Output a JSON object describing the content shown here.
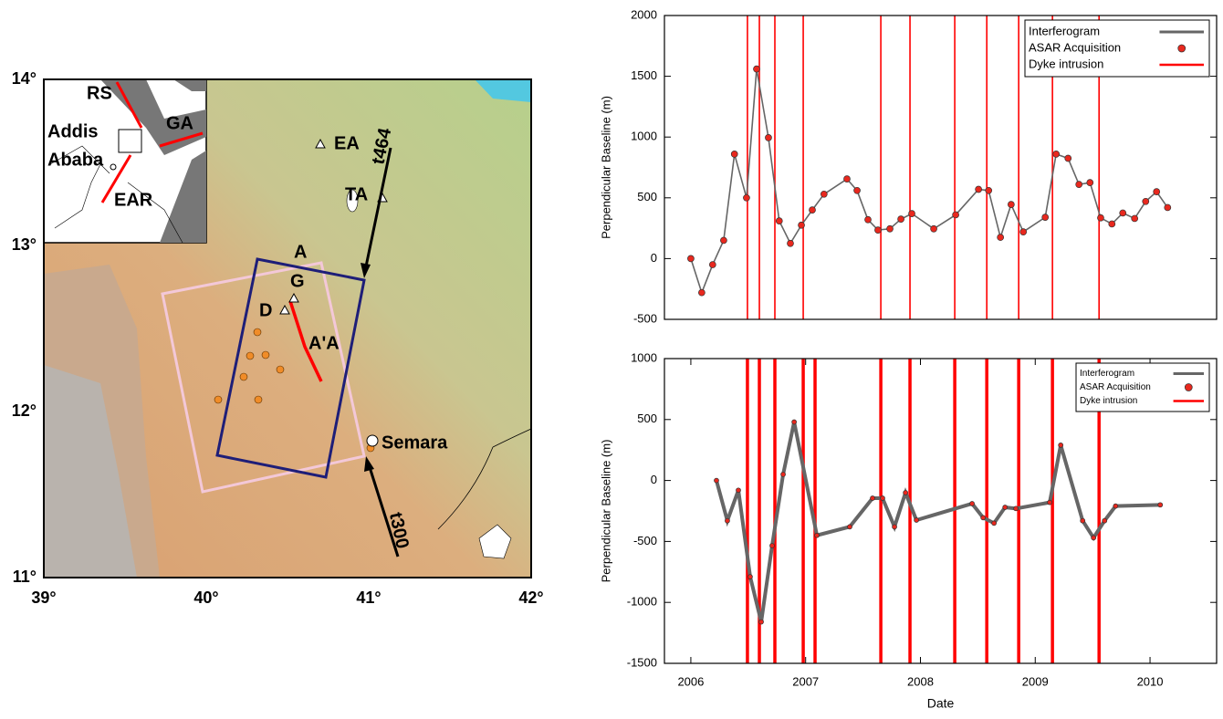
{
  "map": {
    "xticks": [
      "39°",
      "40°",
      "41°",
      "42°"
    ],
    "yticks": [
      "14°",
      "13°",
      "12°",
      "11°"
    ],
    "labels": [
      "RS",
      "GA",
      "Addis",
      "Ababa",
      "EAR",
      "EA",
      "TA",
      "A",
      "G",
      "D",
      "A'A",
      "Semara",
      "t464",
      "t300"
    ]
  },
  "chart_data": [
    {
      "type": "line",
      "y_label": "Perpendicular Baseline (m)",
      "xlim": [
        2005.77,
        2010.58
      ],
      "ylim": [
        -500,
        2000
      ],
      "yticks": [
        -500,
        0,
        500,
        1000,
        1500,
        2000
      ],
      "legend": "upper right",
      "series": [
        {
          "name": "Interferogram",
          "color": "#666666",
          "x": [
            2006.0,
            2006.095,
            2006.19,
            2006.286,
            2006.38,
            2006.485,
            2006.573,
            2006.676,
            2006.77,
            2006.867,
            2006.963,
            2007.058,
            2007.16,
            2007.36,
            2007.448,
            2007.543,
            2007.63,
            2007.734,
            2007.83,
            2007.925,
            2008.116,
            2008.307,
            2008.506,
            2008.594,
            2008.697,
            2008.79,
            2008.896,
            2009.087,
            2009.182,
            2009.286,
            2009.381,
            2009.477,
            2009.57,
            2009.668,
            2009.763,
            2009.866,
            2009.962,
            2010.057,
            2010.153
          ],
          "values": [
            0,
            -280,
            -50,
            150,
            860,
            500,
            1560,
            995,
            310,
            125,
            275,
            400,
            530,
            655,
            560,
            320,
            235,
            245,
            325,
            370,
            245,
            360,
            570,
            560,
            175,
            445,
            220,
            340,
            860,
            825,
            610,
            625,
            335,
            285,
            375,
            330,
            470,
            550,
            420
          ],
          "markers": {
            "name": "ASAR Acquisition",
            "color": "#e8281e"
          }
        }
      ],
      "vlines": {
        "name": "Dyke intrusion",
        "color": "#ff0000",
        "x": [
          2006.493,
          2006.597,
          2006.732,
          2006.979,
          2007.655,
          2007.909,
          2008.299,
          2008.578,
          2008.856,
          2009.15,
          2009.556
        ]
      }
    },
    {
      "type": "line",
      "y_label": "Perpendicular Baseline (m)",
      "x_label": "Date",
      "xlim": [
        2005.77,
        2010.58
      ],
      "ylim": [
        -1500,
        1000
      ],
      "xticks": [
        2006,
        2007,
        2008,
        2009,
        2010
      ],
      "yticks": [
        -1500,
        -1000,
        -500,
        0,
        500,
        1000
      ],
      "legend": "upper right",
      "series": [
        {
          "name": "Interferogram",
          "color": "#666666",
          "x": [
            2006.223,
            2006.318,
            2006.414,
            2006.517,
            2006.613,
            2006.708,
            2006.804,
            2006.9,
            2007.098,
            2007.384,
            2007.583,
            2007.67,
            2007.774,
            2007.87,
            2007.965,
            2008.45,
            2008.546,
            2008.641,
            2008.737,
            2008.832,
            2009.126,
            2009.222,
            2009.413,
            2009.508,
            2009.604,
            2009.7,
            2010.089
          ],
          "values": [
            0,
            -330,
            -80,
            -790,
            -1160,
            -535,
            50,
            480,
            -450,
            -380,
            -145,
            -145,
            -380,
            -100,
            -325,
            -190,
            -305,
            -350,
            -220,
            -230,
            -180,
            290,
            -330,
            -470,
            -330,
            -210,
            -200
          ],
          "markers": {
            "name": "ASAR Acquisition",
            "color": "#e8281e"
          }
        }
      ],
      "vlines": {
        "name": "Dyke intrusion",
        "color": "#ff0000",
        "x": [
          2006.493,
          2006.597,
          2006.732,
          2006.979,
          2007.082,
          2007.655,
          2007.909,
          2008.299,
          2008.578,
          2008.856,
          2009.15,
          2009.556
        ]
      }
    }
  ]
}
